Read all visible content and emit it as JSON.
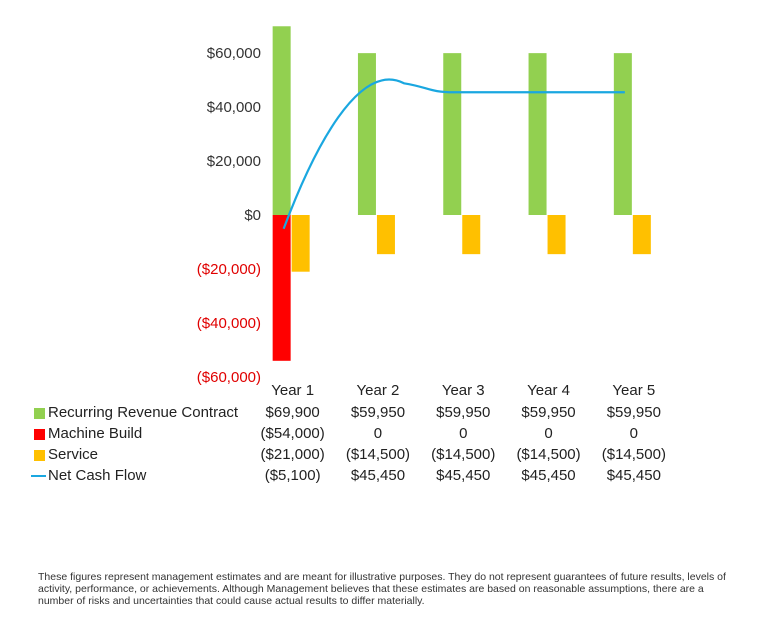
{
  "chart_data": {
    "type": "bar",
    "categories": [
      "Year 1",
      "Year 2",
      "Year 3",
      "Year 4",
      "Year 5"
    ],
    "series": [
      {
        "name": "Recurring Revenue Contract",
        "kind": "bar",
        "color": "#92d050",
        "values": [
          69900,
          59950,
          59950,
          59950,
          59950
        ],
        "labels": [
          "$69,900",
          "$59,950",
          "$59,950",
          "$59,950",
          "$59,950"
        ]
      },
      {
        "name": "Machine Build",
        "kind": "bar",
        "color": "#ff0000",
        "values": [
          -54000,
          0,
          0,
          0,
          0
        ],
        "labels": [
          "($54,000)",
          "0",
          "0",
          "0",
          "0"
        ]
      },
      {
        "name": "Service",
        "kind": "bar",
        "color": "#ffc000",
        "values": [
          -21000,
          -14500,
          -14500,
          -14500,
          -14500
        ],
        "labels": [
          "($21,000)",
          "($14,500)",
          "($14,500)",
          "($14,500)",
          "($14,500)"
        ]
      },
      {
        "name": "Net Cash Flow",
        "kind": "line",
        "color": "#1aa7e0",
        "values": [
          -5100,
          45450,
          45450,
          45450,
          45450
        ],
        "labels": [
          "($5,100)",
          "$45,450",
          "$45,450",
          "$45,450",
          "$45,450"
        ]
      }
    ],
    "ylim": [
      -60000,
      60000
    ],
    "yticks": [
      {
        "value": 60000,
        "label": "$60,000"
      },
      {
        "value": 40000,
        "label": "$40,000"
      },
      {
        "value": 20000,
        "label": "$20,000"
      },
      {
        "value": 0,
        "label": "$0"
      },
      {
        "value": -20000,
        "label": "($20,000)"
      },
      {
        "value": -40000,
        "label": "($40,000)"
      },
      {
        "value": -60000,
        "label": "($60,000)"
      }
    ],
    "negative_tick_color": "#e00000",
    "grid": false,
    "legend": "data-table-bottom"
  },
  "disclaimer": "These figures represent management estimates and are meant for illustrative purposes. They do not represent guarantees of future results, levels of activity, performance, or achievements. Although Management believes that these estimates are based on reasonable assumptions, there are a number of risks and uncertainties that could cause actual results to differ materially."
}
